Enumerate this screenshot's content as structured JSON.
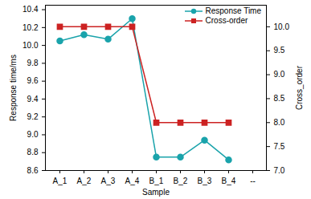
{
  "chart_data": {
    "type": "line",
    "x_label": "Sample",
    "y_label": "Response time/ms",
    "y2_label": "Cross_order",
    "categories": [
      "A_1",
      "A_2",
      "A_3",
      "A_4",
      "B_1",
      "B_2",
      "B_3",
      "B_4",
      "--"
    ],
    "series": [
      {
        "name": "Response Time",
        "color": "#1aa3ab",
        "marker": "circle",
        "values": [
          10.05,
          10.12,
          10.07,
          10.3,
          8.75,
          8.75,
          8.94,
          8.72,
          null
        ]
      },
      {
        "name": "Cross-order",
        "color": "#cc2222",
        "marker": "square",
        "axis": "y2",
        "values": [
          10,
          10,
          10,
          10,
          8,
          8,
          8,
          8,
          null
        ]
      }
    ],
    "ylim": [
      8.6,
      10.45
    ],
    "yticks": [
      8.6,
      8.8,
      {
        "value": 9,
        "label": "9.0"
      },
      9.2,
      9.4,
      9.6,
      9.8,
      {
        "value": 10,
        "label": "10.0"
      },
      10.2,
      10.4
    ],
    "y2lim": [
      7.0,
      10.45
    ],
    "y2ticks": [
      {
        "value": 7,
        "label": "7.0"
      },
      7.5,
      {
        "value": 8,
        "label": "8.0"
      },
      8.5,
      {
        "value": 9,
        "label": "9.0"
      },
      9.5,
      {
        "value": 10,
        "label": "10.0"
      }
    ],
    "legend": "upper right",
    "grid": false
  }
}
